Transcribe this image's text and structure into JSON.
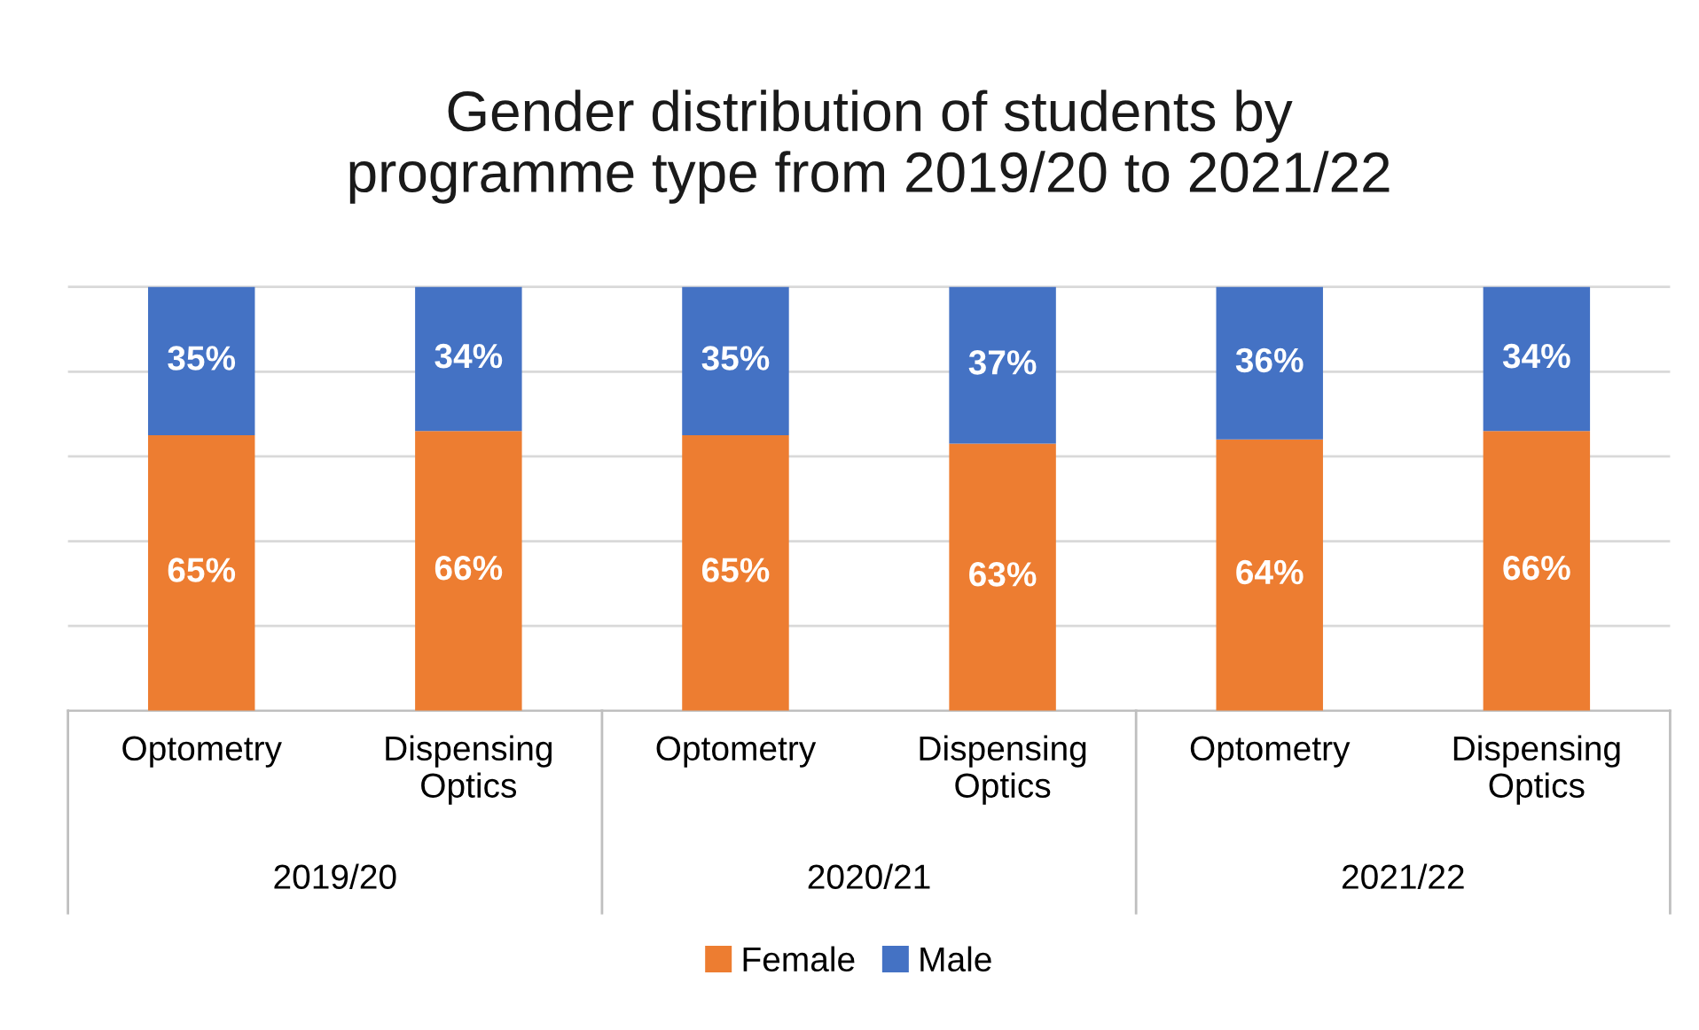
{
  "chart_data": {
    "type": "bar",
    "title": "Gender distribution of students by\nprogramme type from 2019/20 to 2021/22",
    "categories": [
      "Optometry",
      "Dispensing\nOptics",
      "Optometry",
      "Dispensing\nOptics",
      "Optometry",
      "Dispensing\nOptics"
    ],
    "annotations": [
      "2019/20",
      "2020/21",
      "2021/22"
    ],
    "stacked": true,
    "series": [
      {
        "name": "Female",
        "color": "#ed7d31",
        "values": [
          65,
          66,
          65,
          63,
          64,
          66
        ],
        "value_labels": [
          "65%",
          "66%",
          "65%",
          "63%",
          "64%",
          "66%"
        ]
      },
      {
        "name": "Male",
        "color": "#4472c4",
        "values": [
          35,
          34,
          35,
          37,
          36,
          34
        ],
        "value_labels": [
          "35%",
          "34%",
          "35%",
          "37%",
          "36%",
          "34%"
        ]
      }
    ],
    "grid": "y",
    "tick_labels": "x",
    "legend": "bottom"
  }
}
